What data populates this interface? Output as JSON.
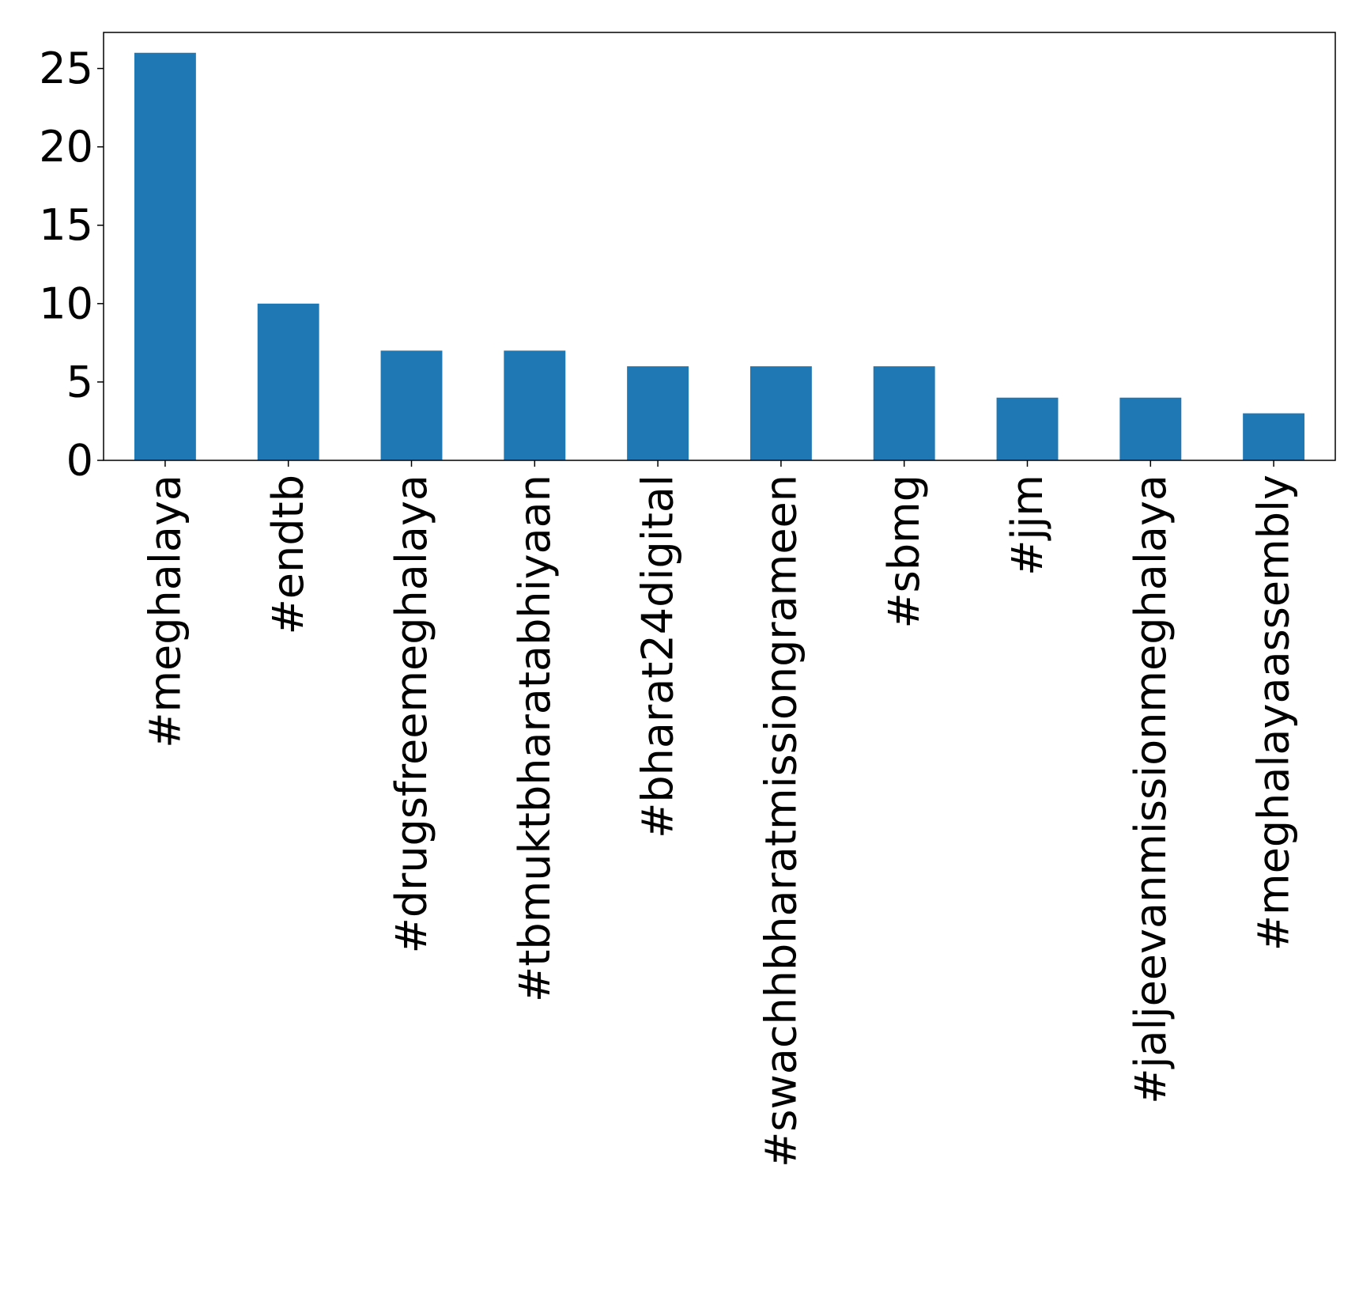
{
  "chart_data": {
    "type": "bar",
    "title": "",
    "xlabel": "",
    "ylabel": "",
    "categories": [
      "#meghalaya",
      "#endtb",
      "#drugsfreemeghalaya",
      "#tbmuktbharatabhiyaan",
      "#bharat24digital",
      "#swachhbharatmissiongrameen",
      "#sbmg",
      "#jjm",
      "#jaljeevanmissionmeghalaya",
      "#meghalayaassembly"
    ],
    "values": [
      26,
      10,
      7,
      7,
      6,
      6,
      6,
      4,
      4,
      3
    ],
    "ylim": [
      0,
      27.3
    ],
    "yticks": [
      "0",
      "5",
      "10",
      "15",
      "20",
      "25"
    ],
    "grid": false,
    "legend": "none",
    "colors": {
      "bar": "#1f77b4",
      "axis": "#000000",
      "background": "#ffffff"
    }
  }
}
